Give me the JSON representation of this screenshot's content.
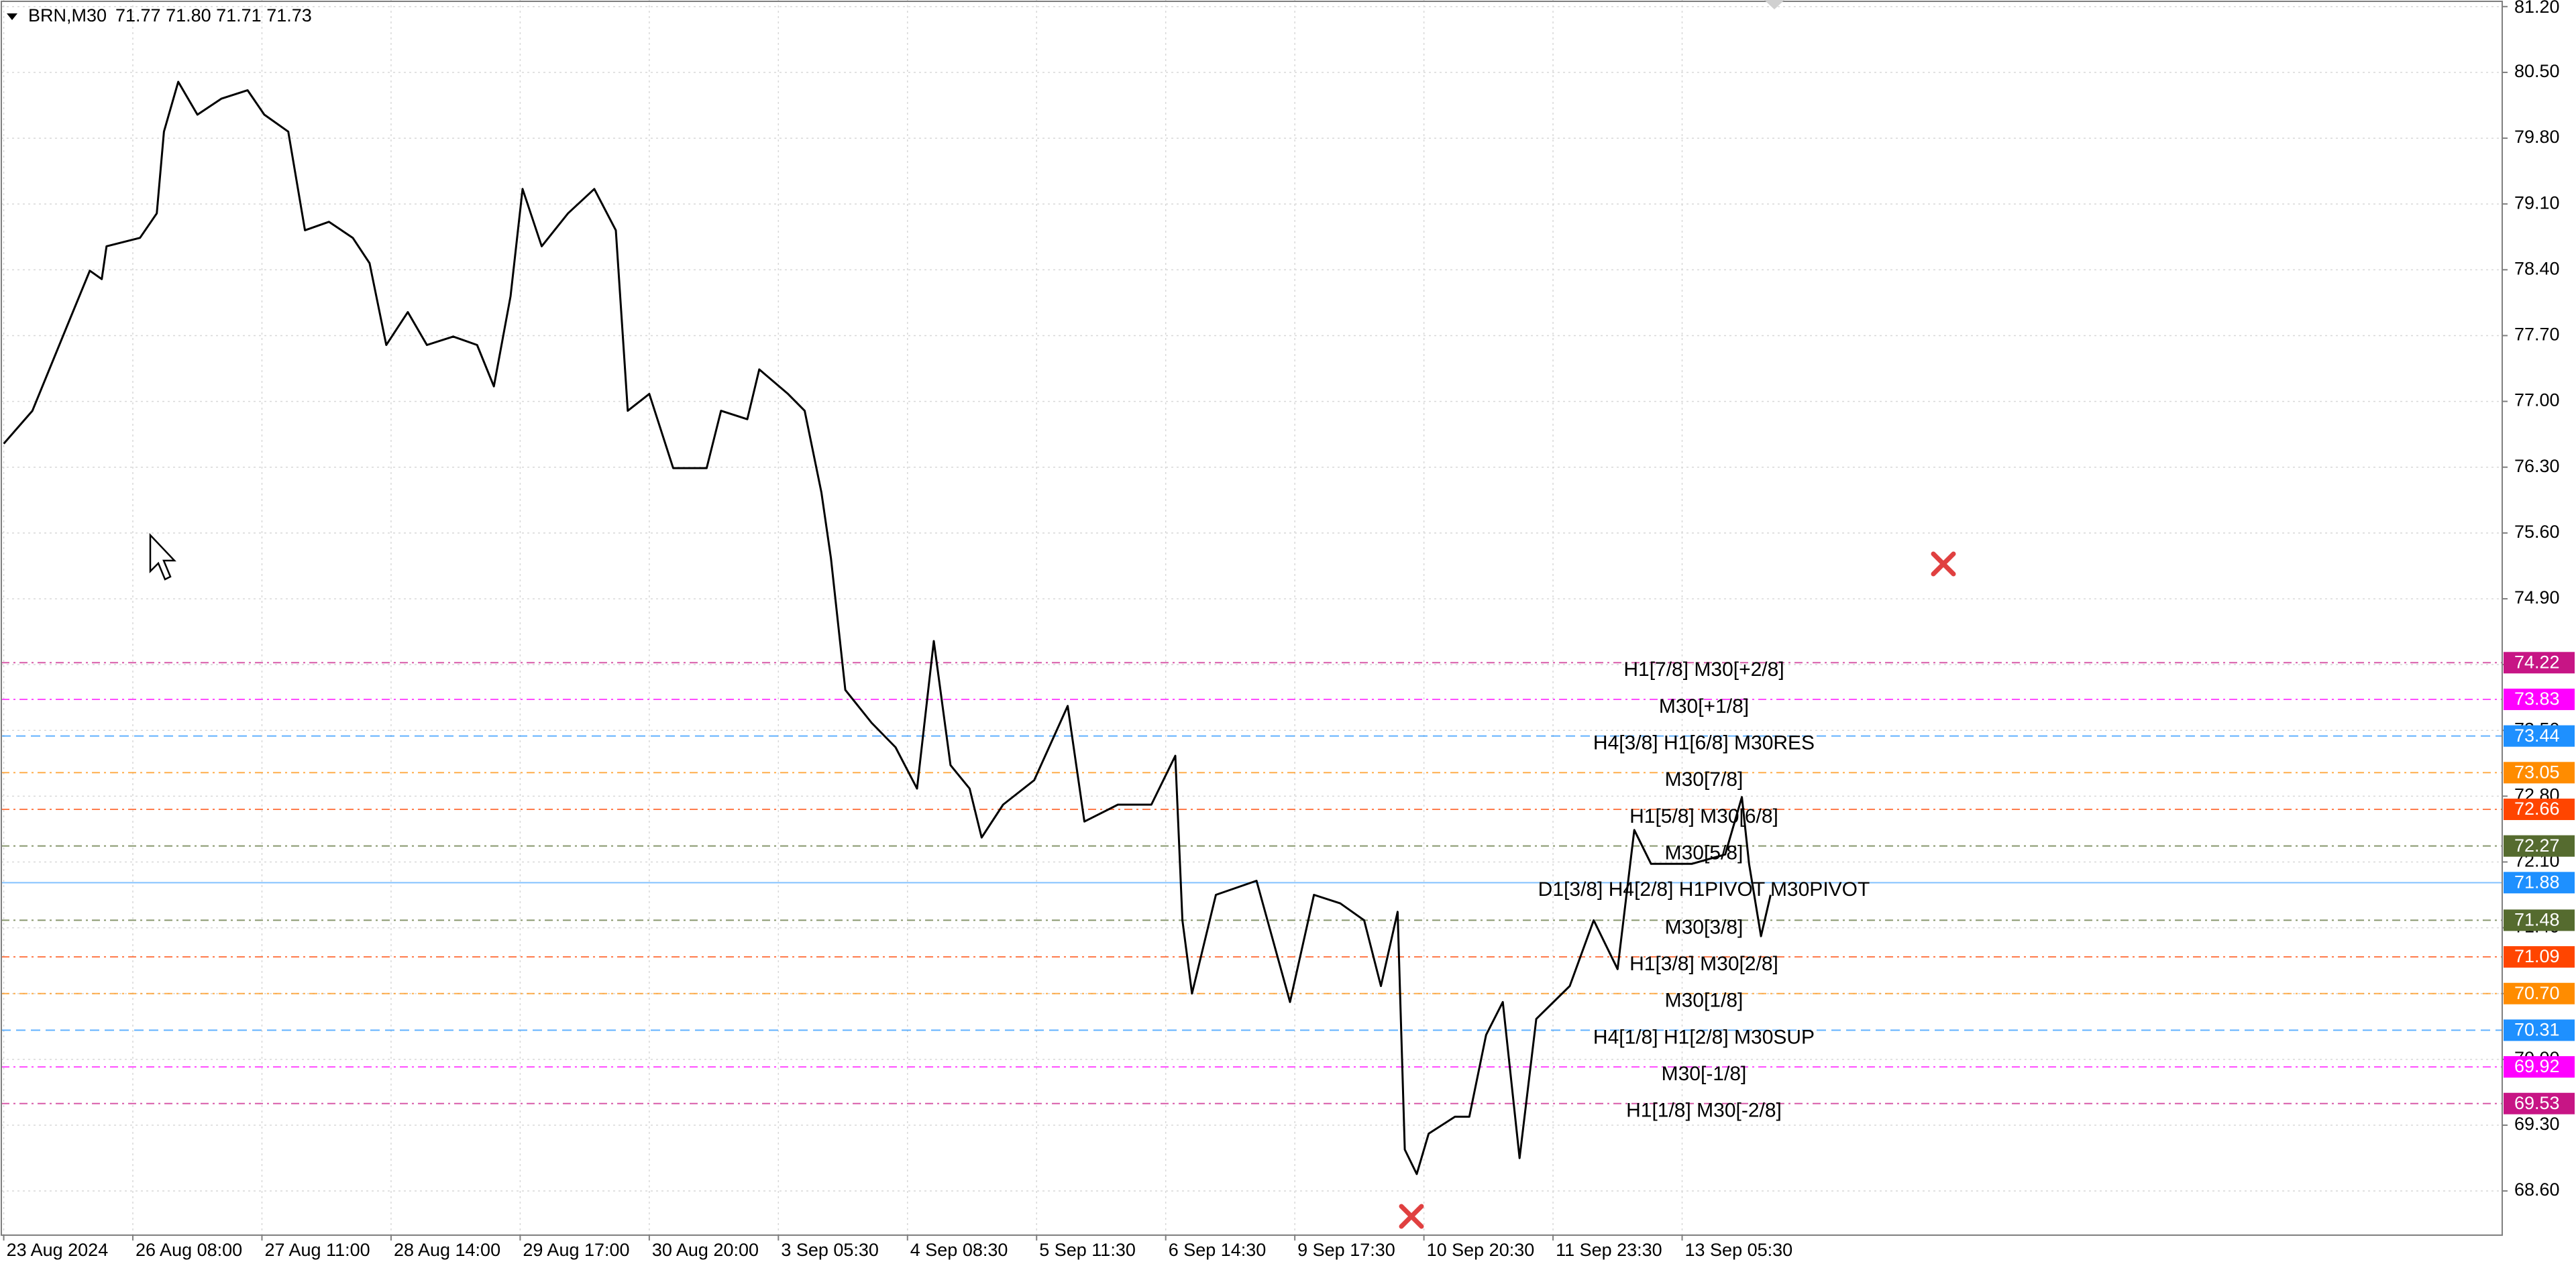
{
  "chart_data": {
    "type": "line",
    "title": "BRN,M30",
    "subtitle": "71.77 71.80 71.71 71.73",
    "x": [
      0,
      12,
      26,
      36,
      41,
      43,
      57,
      64,
      67,
      73,
      81,
      91,
      102,
      109,
      119,
      126,
      136,
      146,
      153,
      160,
      169,
      177,
      188,
      198,
      205,
      212,
      217,
      225,
      236,
      247,
      256,
      261,
      270,
      280,
      294,
      300,
      311,
      316,
      328,
      335,
      342,
      346,
      352,
      363,
      373,
      382,
      389,
      396,
      404,
      409,
      418,
      431,
      445,
      452,
      466,
      480,
      490,
      493,
      497,
      507,
      524,
      538,
      548,
      559,
      569,
      576,
      583,
      586,
      591,
      596,
      607,
      613,
      620,
      627,
      634,
      641,
      655,
      665,
      675,
      682,
      689,
      706,
      720,
      727,
      730,
      735,
      739
    ],
    "series": [
      {
        "name": "BRN",
        "color": "#000000",
        "values": [
          76.55,
          76.9,
          77.77,
          78.39,
          78.3,
          78.65,
          78.74,
          79.0,
          79.87,
          80.4,
          80.05,
          80.22,
          80.31,
          80.05,
          79.87,
          78.82,
          78.91,
          78.74,
          78.47,
          77.6,
          77.95,
          77.6,
          77.69,
          77.6,
          77.16,
          78.12,
          79.26,
          78.65,
          79.0,
          79.26,
          78.82,
          76.9,
          77.08,
          76.29,
          76.29,
          76.9,
          76.81,
          77.34,
          77.08,
          76.9,
          76.03,
          75.33,
          73.93,
          73.58,
          73.32,
          72.88,
          74.45,
          73.13,
          72.88,
          72.36,
          72.71,
          72.97,
          73.76,
          72.53,
          72.71,
          72.71,
          73.23,
          71.48,
          70.7,
          71.75,
          71.9,
          70.61,
          71.75,
          71.66,
          71.48,
          70.78,
          71.57,
          69.04,
          68.78,
          69.21,
          69.39,
          69.39,
          70.26,
          70.61,
          68.95,
          70.43,
          70.78,
          71.48,
          70.96,
          72.44,
          72.08,
          72.08,
          72.18,
          72.79,
          72.08,
          71.31,
          71.75
        ]
      }
    ],
    "xlim": [
      -1,
      1045
    ],
    "xticks": [
      {
        "value": 0,
        "label": "23 Aug 2024"
      },
      {
        "value": 54,
        "label": "26 Aug 08:00"
      },
      {
        "value": 108,
        "label": "27 Aug 11:00"
      },
      {
        "value": 162,
        "label": "28 Aug 14:00"
      },
      {
        "value": 216,
        "label": "29 Aug 17:00"
      },
      {
        "value": 270,
        "label": "30 Aug 20:00"
      },
      {
        "value": 324,
        "label": "3 Sep 05:30"
      },
      {
        "value": 378,
        "label": "4 Sep 08:30"
      },
      {
        "value": 432,
        "label": "5 Sep 11:30"
      },
      {
        "value": 486,
        "label": "6 Sep 14:30"
      },
      {
        "value": 540,
        "label": "9 Sep 17:30"
      },
      {
        "value": 594,
        "label": "10 Sep 20:30"
      },
      {
        "value": 648,
        "label": "11 Sep 23:30"
      },
      {
        "value": 702,
        "label": "13 Sep 05:30"
      }
    ],
    "ylim": [
      68.13,
      81.27
    ],
    "yticks": [
      {
        "value": 81.2,
        "label": "81.20"
      },
      {
        "value": 80.5,
        "label": "80.50"
      },
      {
        "value": 79.8,
        "label": "79.80"
      },
      {
        "value": 79.1,
        "label": "79.10"
      },
      {
        "value": 78.4,
        "label": "78.40"
      },
      {
        "value": 77.7,
        "label": "77.70"
      },
      {
        "value": 77.0,
        "label": "77.00"
      },
      {
        "value": 76.3,
        "label": "76.30"
      },
      {
        "value": 75.6,
        "label": "75.60"
      },
      {
        "value": 74.9,
        "label": "74.90"
      },
      {
        "value": 74.2,
        "label": "74.20"
      },
      {
        "value": 73.5,
        "label": "73.50"
      },
      {
        "value": 72.8,
        "label": "72.80"
      },
      {
        "value": 72.1,
        "label": "72.10"
      },
      {
        "value": 71.4,
        "label": "71.40"
      },
      {
        "value": 70.7,
        "label": "70.70"
      },
      {
        "value": 70.0,
        "label": "70.00"
      },
      {
        "value": 69.3,
        "label": "69.30"
      },
      {
        "value": 68.6,
        "label": "68.60"
      }
    ],
    "grid": true,
    "levels": [
      {
        "value": 74.22,
        "tag": "74.22",
        "label": "H1[7/8] M30[+2/8]",
        "color": "#c71585"
      },
      {
        "value": 73.83,
        "tag": "73.83",
        "label": "M30[+1/8]",
        "color": "#ff00ff"
      },
      {
        "value": 73.44,
        "tag": "73.44",
        "label": "H4[3/8] H1[6/8] M30RES",
        "color": "#1e90ff"
      },
      {
        "value": 73.05,
        "tag": "73.05",
        "label": "M30[7/8]",
        "color": "#ff8c00"
      },
      {
        "value": 72.66,
        "tag": "72.66",
        "label": "H1[5/8] M30[6/8]",
        "color": "#ff4500"
      },
      {
        "value": 72.27,
        "tag": "72.27",
        "label": "M30[5/8]",
        "color": "#556b2f"
      },
      {
        "value": 71.88,
        "tag": "71.88",
        "label": "D1[3/8] H4[2/8] H1PIVOT M30PIVOT",
        "color": "#1e90ff"
      },
      {
        "value": 71.48,
        "tag": "71.48",
        "label": "M30[3/8]",
        "color": "#556b2f"
      },
      {
        "value": 71.09,
        "tag": "71.09",
        "label": "H1[3/8] M30[2/8]",
        "color": "#ff4500"
      },
      {
        "value": 70.7,
        "tag": "70.70",
        "label": "M30[1/8]",
        "color": "#ff8c00"
      },
      {
        "value": 70.31,
        "tag": "70.31",
        "label": "H4[1/8] H1[2/8] M30SUP",
        "color": "#1e90ff"
      },
      {
        "value": 69.92,
        "tag": "69.92",
        "label": "M30[-1/8]",
        "color": "#ff00ff"
      },
      {
        "value": 69.53,
        "tag": "69.53",
        "label": "H1[1/8] M30[-2/8]",
        "color": "#c71585"
      }
    ]
  }
}
